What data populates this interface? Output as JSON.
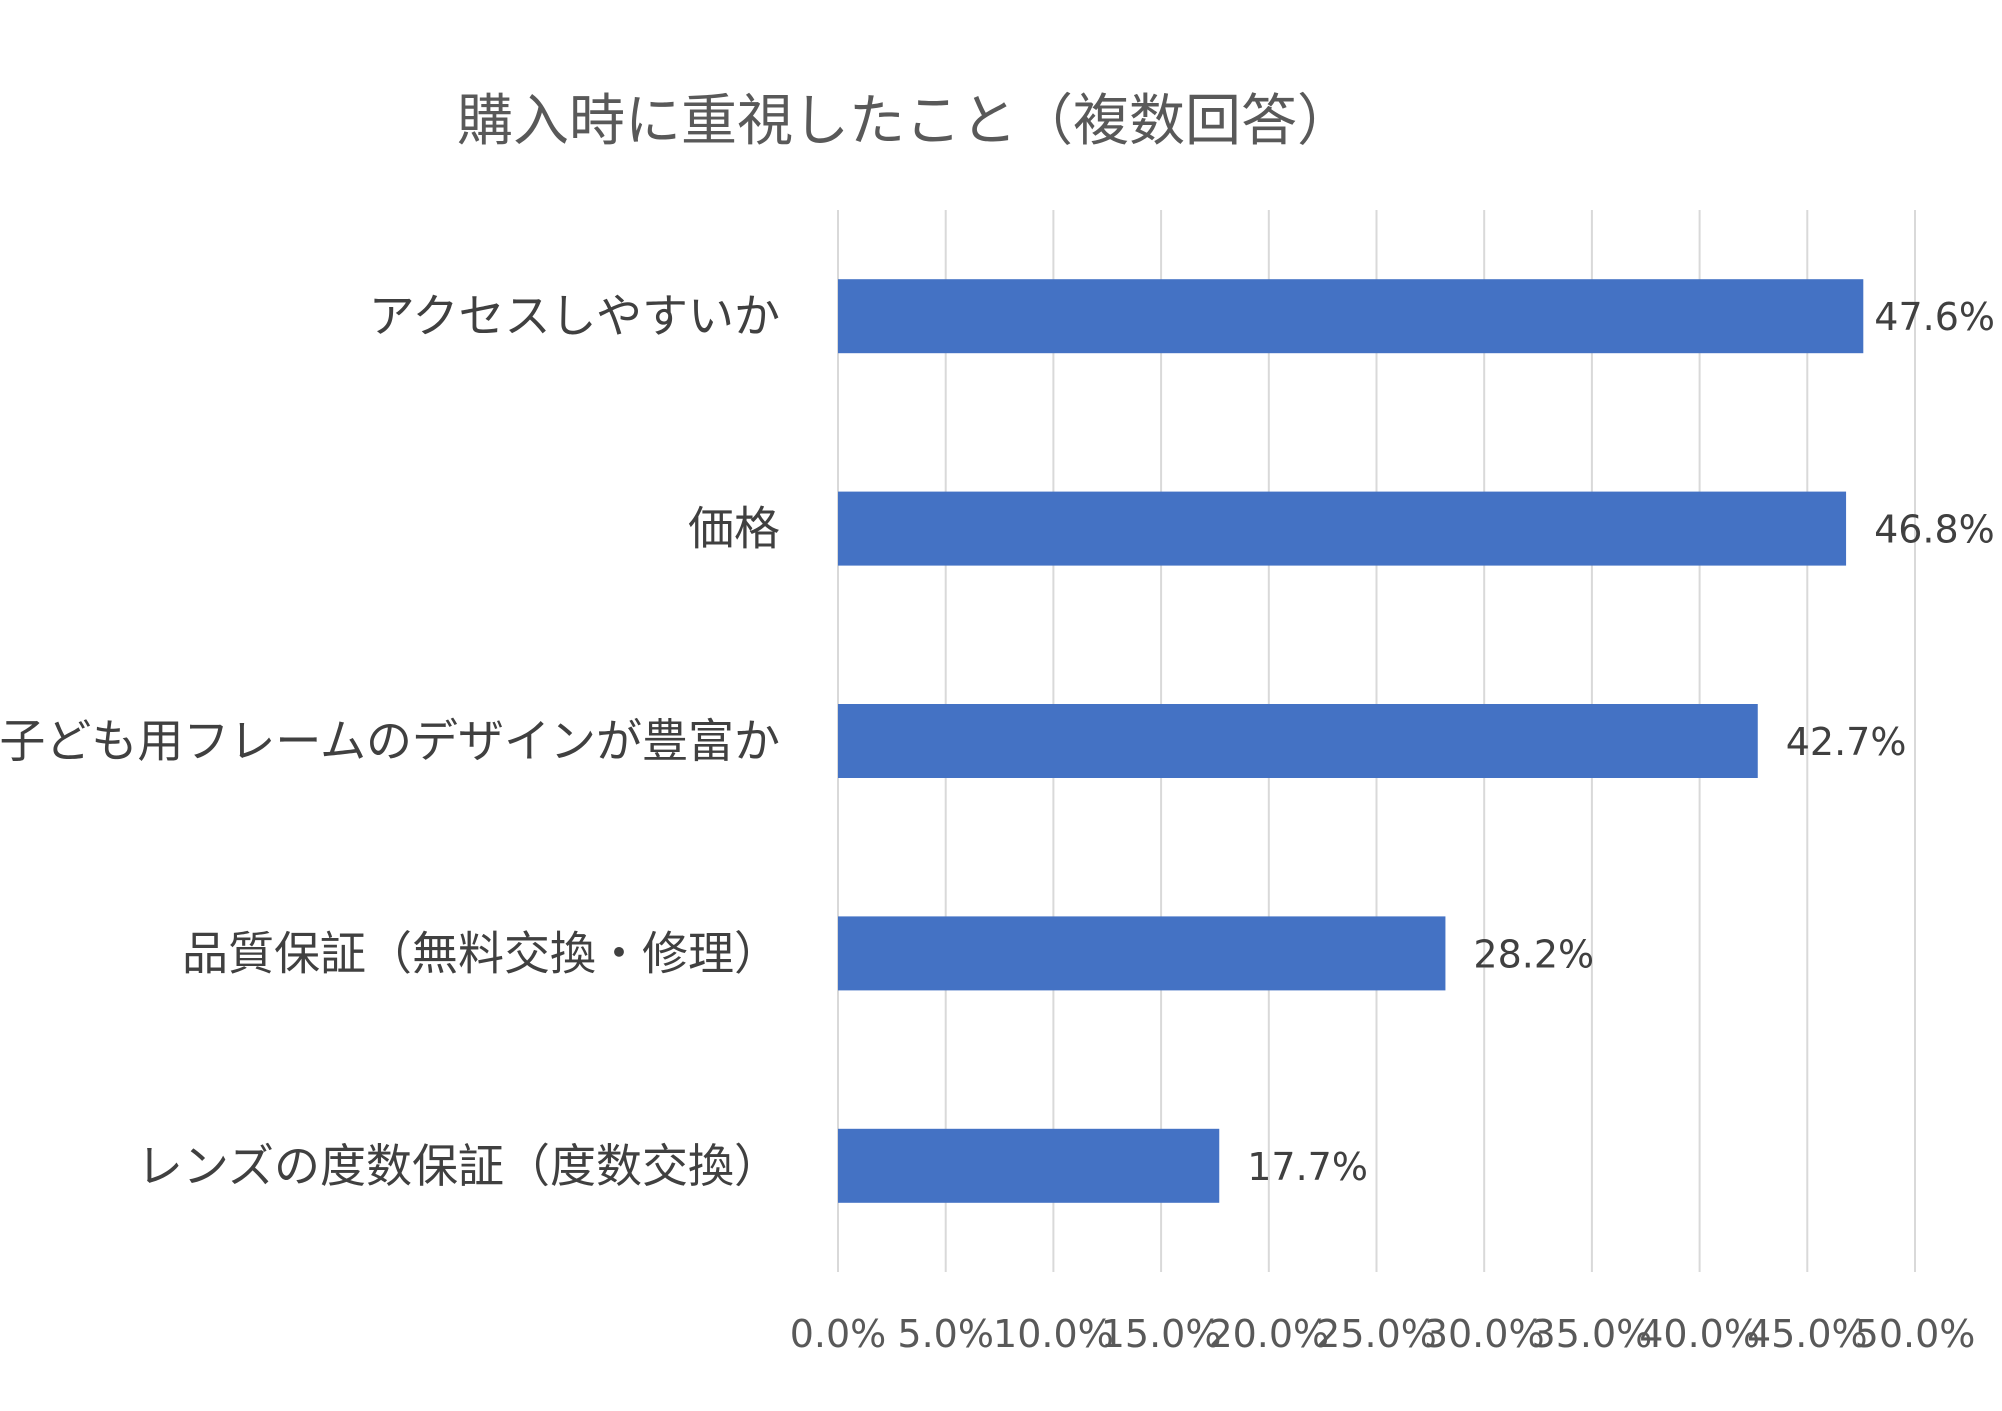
{
  "chart_data": {
    "type": "bar",
    "orientation": "horizontal",
    "title": "購入時に重視したこと（複数回答）",
    "categories": [
      "アクセスしやすいか",
      "価格",
      "子ども用フレームのデザインが豊富か",
      "品質保証（無料交換・修理）",
      "レンズの度数保証（度数交換）"
    ],
    "values": [
      47.6,
      46.8,
      42.7,
      28.2,
      17.7
    ],
    "data_labels": [
      "47.6%",
      "46.8%",
      "42.7%",
      "28.2%",
      "17.7%"
    ],
    "xlim": [
      0,
      50
    ],
    "xticks": [
      0,
      5,
      10,
      15,
      20,
      25,
      30,
      35,
      40,
      45,
      50
    ],
    "xtick_labels": [
      "0.0%",
      "5.0%",
      "10.0%",
      "15.0%",
      "20.0%",
      "25.0%",
      "30.0%",
      "35.0%",
      "40.0%",
      "45.0%",
      "50.0%"
    ],
    "xlabel": "",
    "ylabel": "",
    "grid": "vertical",
    "legend": "none",
    "bar_color": "#4472C4"
  }
}
